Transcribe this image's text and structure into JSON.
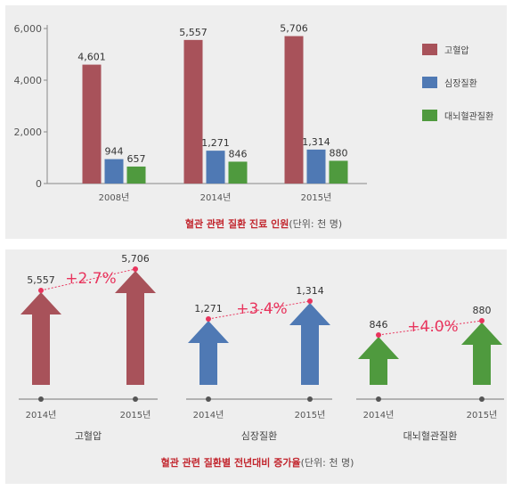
{
  "chart_data": [
    {
      "type": "bar",
      "categories": [
        "2008년",
        "2014년",
        "2015년"
      ],
      "series": [
        {
          "name": "고혈압",
          "values": [
            4601,
            5557,
            5706
          ],
          "color": "#a8525a"
        },
        {
          "name": "심장질환",
          "values": [
            944,
            1271,
            1314
          ],
          "color": "#4f79b4"
        },
        {
          "name": "대뇌혈관질환",
          "values": [
            657,
            846,
            880
          ],
          "color": "#4f9a3e"
        }
      ],
      "value_labels": [
        [
          "4,601",
          "5,557",
          "5,706"
        ],
        [
          "944",
          "1,271",
          "1,314"
        ],
        [
          "657",
          "846",
          "880"
        ]
      ],
      "yticks": [
        "0",
        "2,000",
        "4,000",
        "6,000"
      ],
      "ytick_values": [
        0,
        2000,
        4000,
        6000
      ],
      "ylim": [
        0,
        6000
      ],
      "grid": false,
      "legend_position": "right",
      "caption_bold": "혈관 관련 질환 진료 인원",
      "caption_rest": "(단위: 천 명)"
    },
    {
      "type": "bar",
      "groups": [
        {
          "name": "고혈압",
          "years": [
            "2014년",
            "2015년"
          ],
          "values": [
            5557,
            5706
          ],
          "value_labels": [
            "5,557",
            "5,706"
          ],
          "change": "+2.7%",
          "color": "#a8525a"
        },
        {
          "name": "심장질환",
          "years": [
            "2014년",
            "2015년"
          ],
          "values": [
            1271,
            1314
          ],
          "value_labels": [
            "1,271",
            "1,314"
          ],
          "change": "+3.4%",
          "color": "#4f79b4"
        },
        {
          "name": "대뇌혈관질환",
          "years": [
            "2014년",
            "2015년"
          ],
          "values": [
            846,
            880
          ],
          "value_labels": [
            "846",
            "880"
          ],
          "change": "+4.0%",
          "color": "#4f9a3e"
        }
      ],
      "caption_bold": "혈관 관련 질환별 전년대비 증가율",
      "caption_rest": "(단위: 천 명)"
    }
  ]
}
